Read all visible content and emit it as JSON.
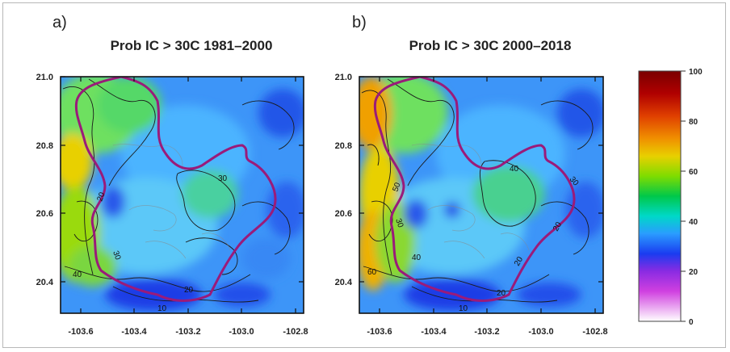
{
  "figure": {
    "panels": [
      {
        "letter": "a)",
        "title": "Prob IC > 30C 1981–2000",
        "contour_labels": [
          "30",
          "20",
          "30",
          "40",
          "20",
          "10"
        ]
      },
      {
        "letter": "b)",
        "title": "Prob IC > 30C 2000–2018",
        "contour_labels": [
          "40",
          "30",
          "50",
          "30",
          "40",
          "60",
          "20",
          "20",
          "20",
          "10"
        ]
      }
    ],
    "x_ticks": [
      "-103.6",
      "-103.4",
      "-103.2",
      "-103.0",
      "-102.8"
    ],
    "y_ticks": [
      "21.0",
      "20.8",
      "20.6",
      "20.4"
    ],
    "colorbar": {
      "ticks": [
        "100",
        "80",
        "60",
        "40",
        "20",
        "0"
      ],
      "colors": [
        "#7a0000",
        "#d41a00",
        "#f07800",
        "#e8d000",
        "#7fdc00",
        "#00c84a",
        "#00d8d8",
        "#2a8cff",
        "#1a3cf0",
        "#8a2be2",
        "#d040e0",
        "#ffffff"
      ]
    },
    "boundary_color": "#9a1b7a"
  }
}
